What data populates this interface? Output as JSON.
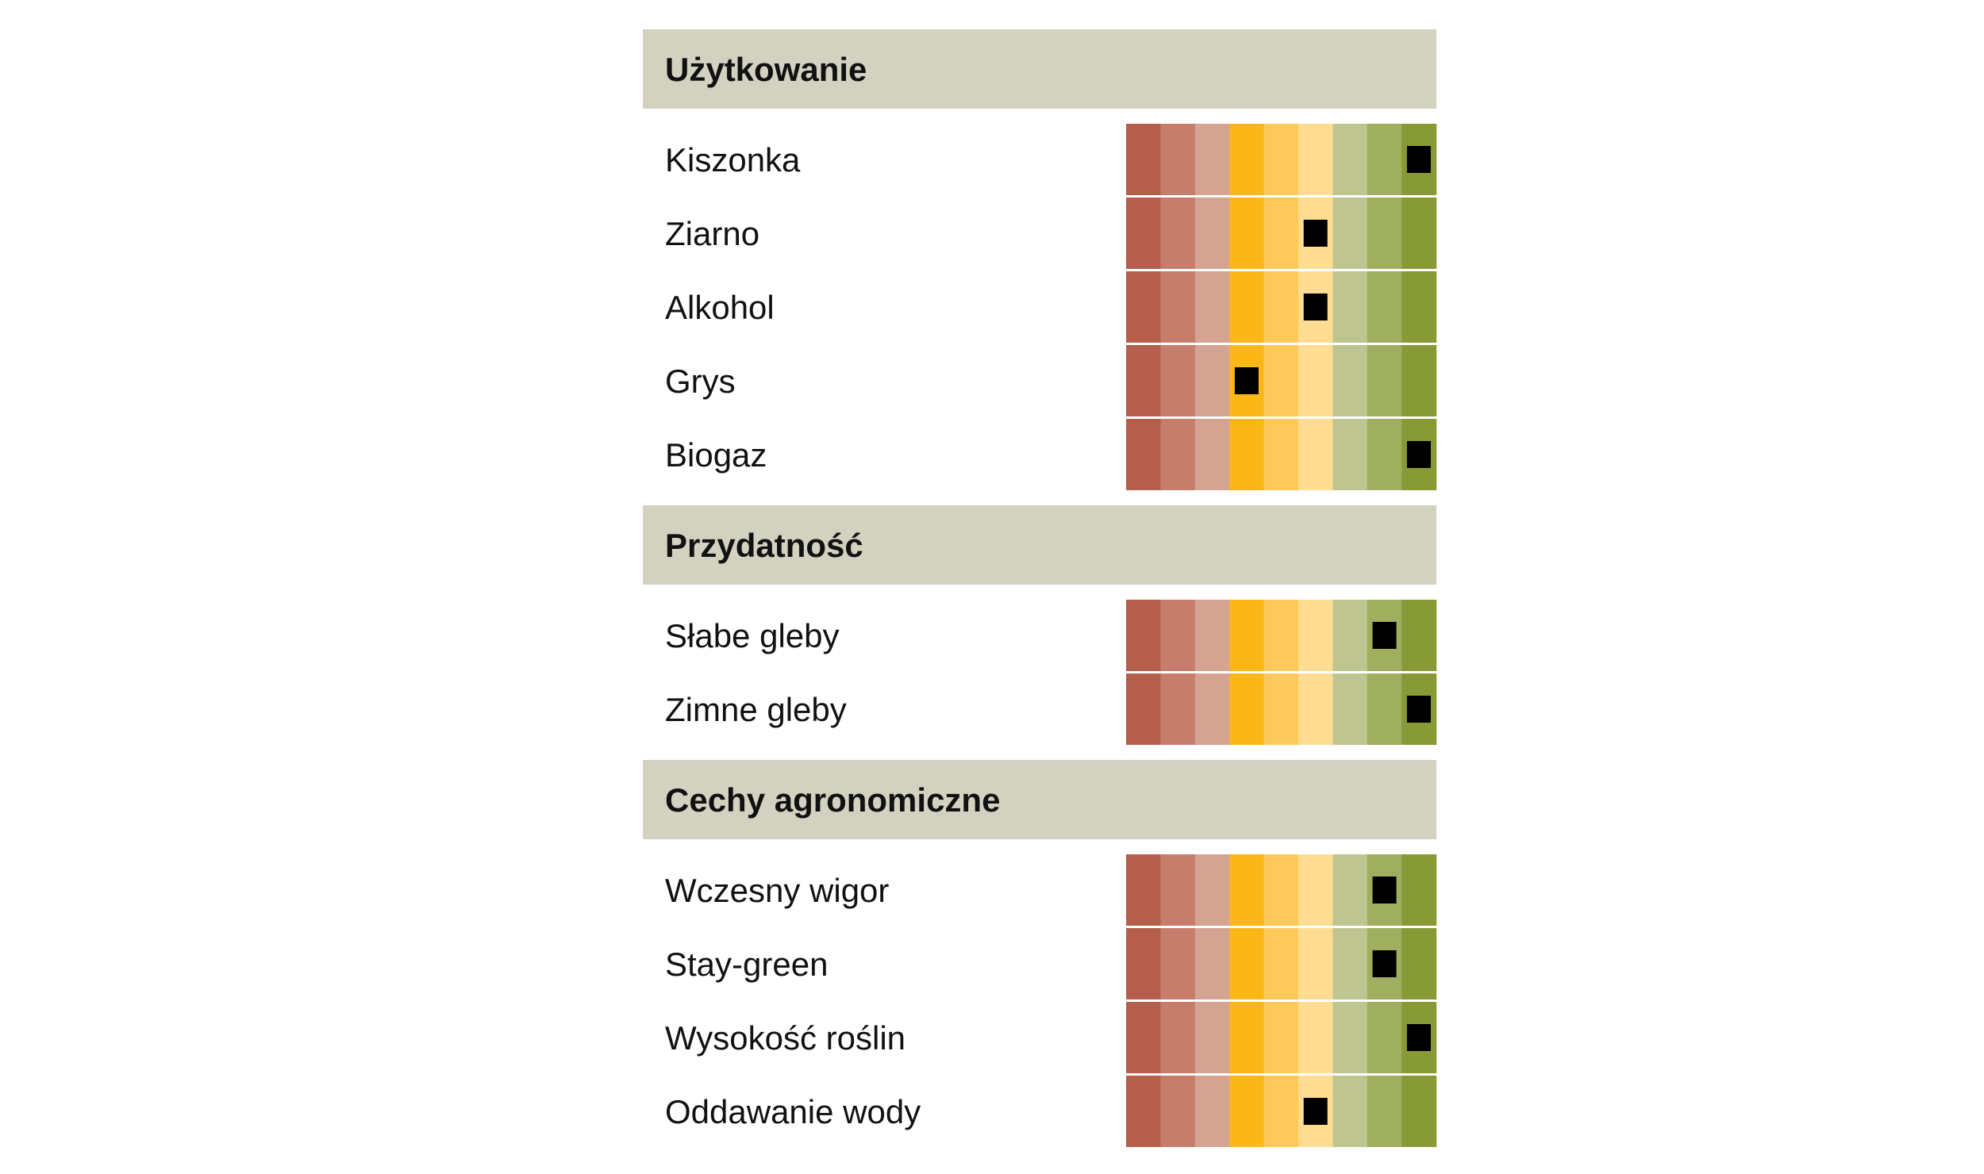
{
  "chart_data": {
    "type": "table",
    "scale_steps": 9,
    "scale_colors": [
      "#b55e4c",
      "#c67d6b",
      "#d4a391",
      "#fbb718",
      "#fdc95a",
      "#fedd92",
      "#bec591",
      "#a0ae60",
      "#879a36"
    ],
    "marker_color": "#000000",
    "sections": [
      {
        "title": "Użytkowanie",
        "rows": [
          {
            "label": "Kiszonka",
            "value": 9
          },
          {
            "label": "Ziarno",
            "value": 6
          },
          {
            "label": "Alkohol",
            "value": 6
          },
          {
            "label": "Grys",
            "value": 4
          },
          {
            "label": "Biogaz",
            "value": 9
          }
        ]
      },
      {
        "title": "Przydatność",
        "rows": [
          {
            "label": "Słabe gleby",
            "value": 8
          },
          {
            "label": "Zimne gleby",
            "value": 9
          }
        ]
      },
      {
        "title": "Cechy agronomiczne",
        "rows": [
          {
            "label": "Wczesny wigor",
            "value": 8
          },
          {
            "label": "Stay-green",
            "value": 8
          },
          {
            "label": "Wysokość roślin",
            "value": 9
          },
          {
            "label": "Oddawanie wody",
            "value": 6
          }
        ]
      }
    ]
  }
}
